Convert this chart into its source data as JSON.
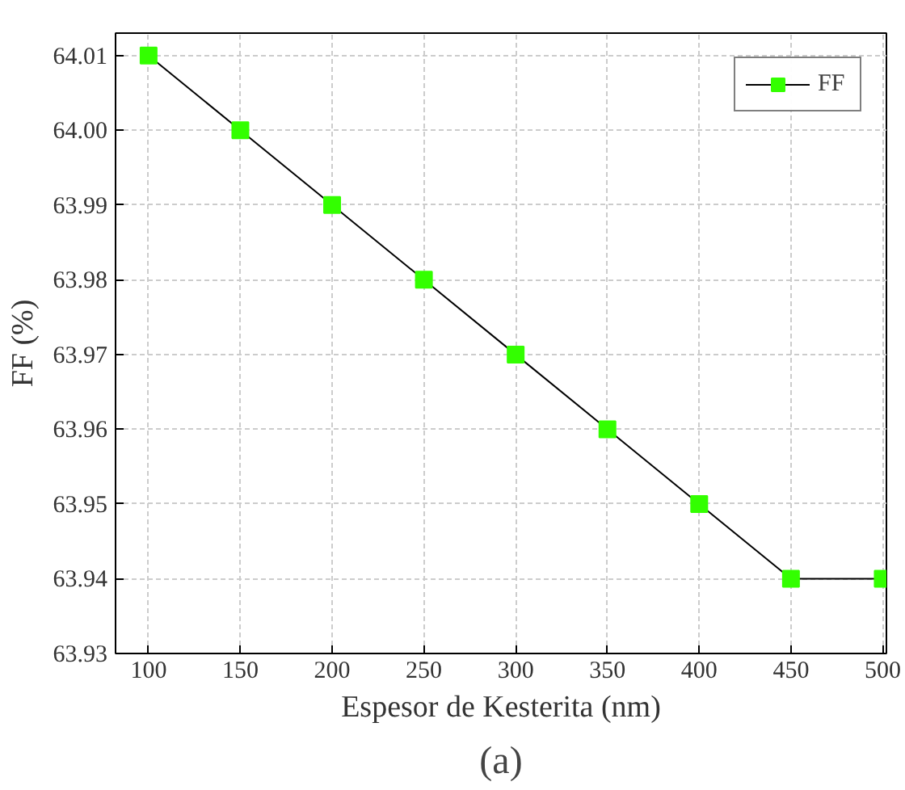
{
  "chart_data": {
    "type": "line",
    "xlabel": "Espesor de Kesterita (nm)",
    "ylabel": "FF (%)",
    "annotations": [
      "(a)"
    ],
    "x": [
      100,
      150,
      200,
      250,
      300,
      350,
      400,
      450,
      500
    ],
    "series": [
      {
        "name": "FF",
        "color": "#33ff00",
        "values": [
          64.01,
          64.0,
          63.99,
          63.98,
          63.97,
          63.96,
          63.95,
          63.94,
          63.94
        ]
      }
    ],
    "xlim": [
      82,
      502
    ],
    "xticks": [
      100,
      150,
      200,
      250,
      300,
      350,
      400,
      450,
      500
    ],
    "ylim": [
      63.93,
      64.013
    ],
    "yticks": [
      {
        "value": 63.93,
        "label": "63.93"
      },
      {
        "value": 63.94,
        "label": "63.94"
      },
      {
        "value": 63.95,
        "label": "63.95"
      },
      {
        "value": 63.96,
        "label": "63.96"
      },
      {
        "value": 63.97,
        "label": "63.97"
      },
      {
        "value": 63.98,
        "label": "63.98"
      },
      {
        "value": 63.99,
        "label": "63.99"
      },
      {
        "value": 64.0,
        "label": "64.00"
      },
      {
        "value": 64.01,
        "label": "64.01"
      }
    ],
    "grid": true,
    "legend": "top right",
    "marker": "square",
    "line_style": "solid"
  }
}
